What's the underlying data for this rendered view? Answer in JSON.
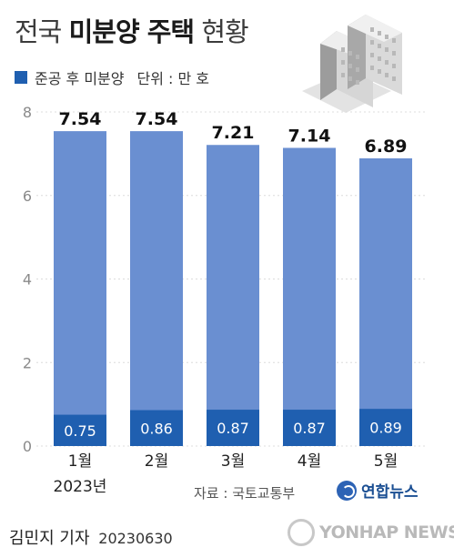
{
  "title": {
    "regular1": "전국",
    "bold": "미분양 주택",
    "regular2": "현황"
  },
  "legend": {
    "series_label": "준공 후 미분양",
    "unit": "단위 : 만 호"
  },
  "source": "자료 : 국토교통부",
  "agency_logo": "연합뉴스",
  "byline": {
    "author": "김민지 기자",
    "date": "20230630"
  },
  "watermark": "YONHAP NEWS",
  "colors": {
    "total_bar": "#6a8fd1",
    "post_completion_bar": "#1f5fb0",
    "axis_text": "#8a8a8a",
    "grid": "#dcdcdc"
  },
  "chart_data": {
    "type": "bar",
    "categories": [
      "1월",
      "2월",
      "3월",
      "4월",
      "5월"
    ],
    "year_label": "2023년",
    "series": [
      {
        "name": "전국 미분양",
        "values": [
          7.54,
          7.54,
          7.21,
          7.14,
          6.89
        ]
      },
      {
        "name": "준공 후 미분양",
        "values": [
          0.75,
          0.86,
          0.87,
          0.87,
          0.89
        ]
      }
    ],
    "yticks": [
      0,
      2,
      4,
      6,
      8
    ],
    "ylim": [
      0,
      8
    ],
    "unit": "만 호",
    "grid": true
  }
}
